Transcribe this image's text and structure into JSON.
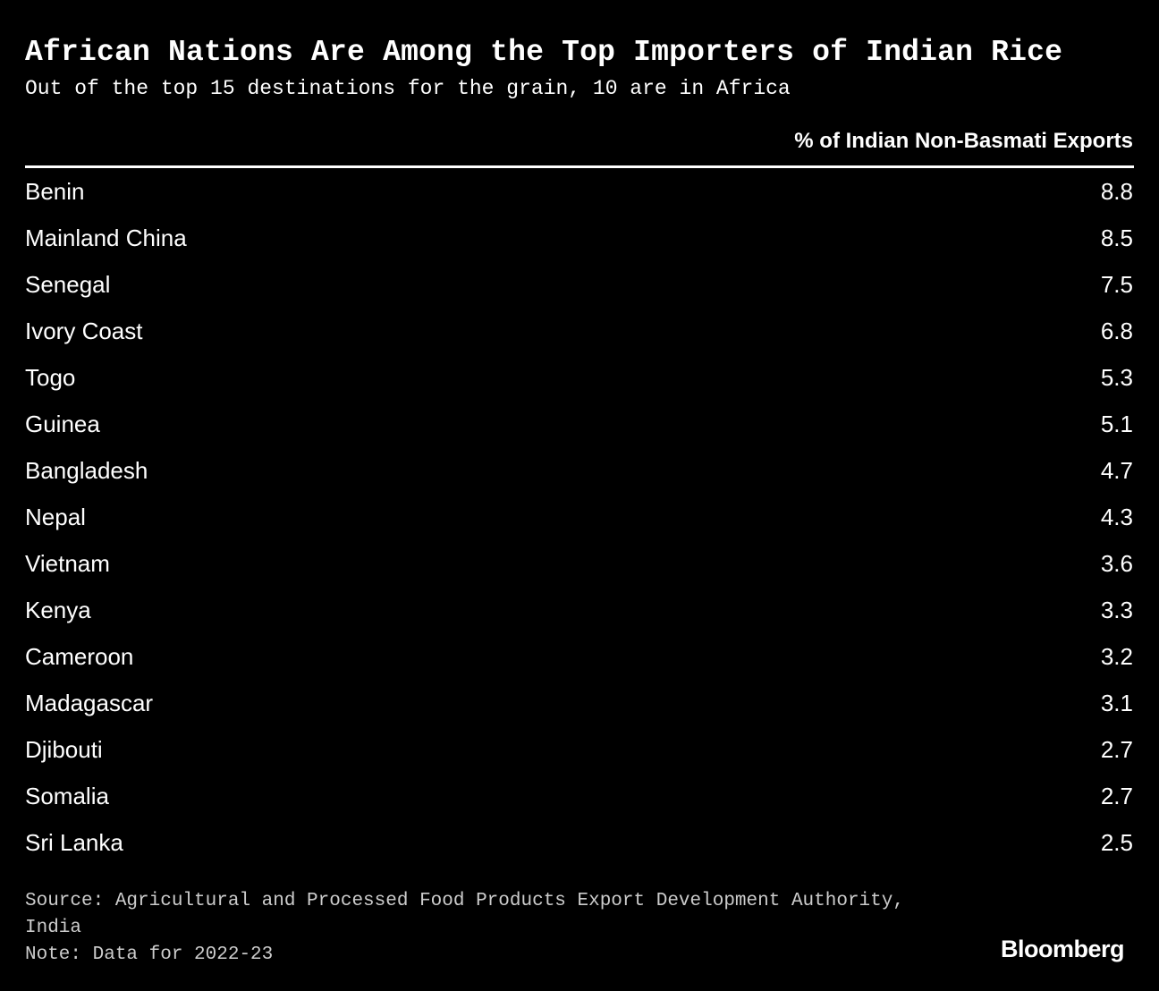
{
  "header": {
    "title": "African Nations Are Among the Top Importers of Indian Rice",
    "subtitle": "Out of the top 15 destinations for the grain, 10 are in Africa"
  },
  "table": {
    "column_header": "% of Indian Non-Basmati Exports",
    "rows": [
      [
        "Benin",
        8.8
      ],
      [
        "Mainland China",
        8.5
      ],
      [
        "Senegal",
        7.5
      ],
      [
        "Ivory Coast",
        6.8
      ],
      [
        "Togo",
        5.3
      ],
      [
        "Guinea",
        5.1
      ],
      [
        "Bangladesh",
        4.7
      ],
      [
        "Nepal",
        4.3
      ],
      [
        "Vietnam",
        3.6
      ],
      [
        "Kenya",
        3.3
      ],
      [
        "Cameroon",
        3.2
      ],
      [
        "Madagascar",
        3.1
      ],
      [
        "Djibouti",
        2.7
      ],
      [
        "Somalia",
        2.7
      ],
      [
        "Sri Lanka",
        2.5
      ]
    ]
  },
  "footer": {
    "source": "Source: Agricultural and Processed Food Products Export Development Authority, India",
    "note": "Note: Data for 2022-23",
    "logo": "Bloomberg"
  }
}
